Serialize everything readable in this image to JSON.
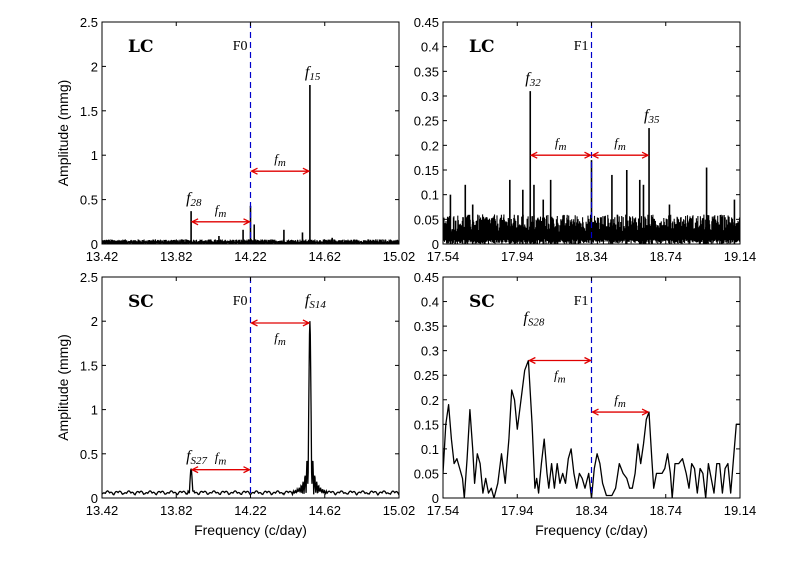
{
  "figure": {
    "xlabel": "Frequency (c/day)",
    "ylabel": "Amplitude (mmg)",
    "colors": {
      "signal": "#000000",
      "reference_line": "#0000cc",
      "spacing_arrow": "#e00000"
    }
  },
  "chart_data": [
    {
      "id": "lc-f0",
      "type": "line",
      "panel_label": "LC",
      "xlabel": "",
      "ylabel": "Amplitude (mmg)",
      "xlim": [
        13.42,
        15.02
      ],
      "ylim": [
        0,
        2.5
      ],
      "xticks": [
        "13.42",
        "13.82",
        "14.22",
        "14.62",
        "15.02"
      ],
      "yticks": [
        "0",
        "0.5",
        "1",
        "1.5",
        "2",
        "2.5"
      ],
      "reference": {
        "label": "F0",
        "x": 14.22
      },
      "noise_level": 0.035,
      "peaks": [
        {
          "x": 13.9,
          "y": 0.37,
          "label": "f",
          "sub": "28"
        },
        {
          "x": 14.05,
          "y": 0.09
        },
        {
          "x": 14.18,
          "y": 0.16
        },
        {
          "x": 14.22,
          "y": 0.43
        },
        {
          "x": 14.24,
          "y": 0.22
        },
        {
          "x": 14.4,
          "y": 0.16
        },
        {
          "x": 14.5,
          "y": 0.13
        },
        {
          "x": 14.54,
          "y": 1.79,
          "label": "f",
          "sub": "15"
        },
        {
          "x": 14.66,
          "y": 0.07
        }
      ],
      "arrows": [
        {
          "x1": 14.22,
          "x2": 14.54,
          "y": 0.82,
          "label": "f",
          "sub": "m"
        },
        {
          "x1": 13.9,
          "x2": 14.22,
          "y": 0.25,
          "label": "f",
          "sub": "m"
        }
      ]
    },
    {
      "id": "lc-f1",
      "type": "line",
      "panel_label": "LC",
      "xlabel": "",
      "ylabel": "",
      "xlim": [
        17.54,
        19.14
      ],
      "ylim": [
        0,
        0.45
      ],
      "xticks": [
        "17.54",
        "17.94",
        "18.34",
        "18.74",
        "19.14"
      ],
      "yticks": [
        "0",
        "0.05",
        "0.1",
        "0.15",
        "0.2",
        "0.25",
        "0.3",
        "0.35",
        "0.4",
        "0.45"
      ],
      "reference": {
        "label": "F1",
        "x": 18.34
      },
      "noise_level": 0.04,
      "peaks": [
        {
          "x": 17.58,
          "y": 0.1
        },
        {
          "x": 17.66,
          "y": 0.12
        },
        {
          "x": 17.7,
          "y": 0.08
        },
        {
          "x": 17.9,
          "y": 0.13
        },
        {
          "x": 17.97,
          "y": 0.11
        },
        {
          "x": 18.01,
          "y": 0.31,
          "label": "f",
          "sub": "32"
        },
        {
          "x": 18.03,
          "y": 0.12
        },
        {
          "x": 18.08,
          "y": 0.09
        },
        {
          "x": 18.12,
          "y": 0.13
        },
        {
          "x": 18.34,
          "y": 0.17
        },
        {
          "x": 18.45,
          "y": 0.14
        },
        {
          "x": 18.53,
          "y": 0.15
        },
        {
          "x": 18.6,
          "y": 0.13
        },
        {
          "x": 18.62,
          "y": 0.12
        },
        {
          "x": 18.65,
          "y": 0.235,
          "label": "f",
          "sub": "35"
        },
        {
          "x": 18.76,
          "y": 0.08
        },
        {
          "x": 18.96,
          "y": 0.155
        },
        {
          "x": 19.11,
          "y": 0.09
        }
      ],
      "arrows": [
        {
          "x1": 18.01,
          "x2": 18.34,
          "y": 0.18,
          "label": "f",
          "sub": "m"
        },
        {
          "x1": 18.34,
          "x2": 18.65,
          "y": 0.18,
          "label": "f",
          "sub": "m"
        }
      ]
    },
    {
      "id": "sc-f0",
      "type": "line",
      "panel_label": "SC",
      "xlabel": "Frequency (c/day)",
      "ylabel": "Amplitude (mmg)",
      "xlim": [
        13.42,
        15.02
      ],
      "ylim": [
        0,
        2.5
      ],
      "xticks": [
        "13.42",
        "13.82",
        "14.22",
        "14.62",
        "15.02"
      ],
      "yticks": [
        "0",
        "0.5",
        "1",
        "1.5",
        "2",
        "2.5"
      ],
      "reference": {
        "label": "F0",
        "x": 14.22
      },
      "peaks": [
        {
          "x": 13.9,
          "y": 0.33,
          "label": "f",
          "sub": "S27"
        },
        {
          "x": 14.54,
          "y": 2.0,
          "label": "f",
          "sub": "S14"
        }
      ],
      "arrows": [
        {
          "x1": 14.22,
          "x2": 14.54,
          "y": 1.98,
          "label": "f",
          "sub": "m"
        },
        {
          "x1": 13.9,
          "x2": 14.22,
          "y": 0.32,
          "label": "f",
          "sub": "m"
        }
      ]
    },
    {
      "id": "sc-f1",
      "type": "line",
      "panel_label": "SC",
      "xlabel": "Frequency (c/day)",
      "ylabel": "",
      "xlim": [
        17.54,
        19.14
      ],
      "ylim": [
        0,
        0.45
      ],
      "xticks": [
        "17.54",
        "17.94",
        "18.34",
        "18.74",
        "19.14"
      ],
      "yticks": [
        "0",
        "0.05",
        "0.1",
        "0.15",
        "0.2",
        "0.25",
        "0.3",
        "0.35",
        "0.4",
        "0.45"
      ],
      "reference": {
        "label": "F1",
        "x": 18.34
      },
      "peaks": [
        {
          "x": 18.0,
          "y": 0.28,
          "label": "f",
          "sub": "S28"
        },
        {
          "x": 18.65,
          "y": 0.175
        }
      ],
      "arrows": [
        {
          "x1": 18.0,
          "x2": 18.34,
          "y": 0.28,
          "label": "f",
          "sub": "m"
        },
        {
          "x1": 18.34,
          "x2": 18.65,
          "y": 0.175,
          "label": "f",
          "sub": "m"
        }
      ],
      "curve": [
        [
          17.54,
          0.05
        ],
        [
          17.555,
          0.15
        ],
        [
          17.57,
          0.19
        ],
        [
          17.585,
          0.12
        ],
        [
          17.6,
          0.07
        ],
        [
          17.615,
          0.08
        ],
        [
          17.63,
          0.06
        ],
        [
          17.645,
          0.04
        ],
        [
          17.655,
          0.0
        ],
        [
          17.67,
          0.08
        ],
        [
          17.685,
          0.18
        ],
        [
          17.7,
          0.1
        ],
        [
          17.71,
          0.03
        ],
        [
          17.725,
          0.09
        ],
        [
          17.74,
          0.07
        ],
        [
          17.755,
          0.01
        ],
        [
          17.77,
          0.04
        ],
        [
          17.785,
          0.01
        ],
        [
          17.8,
          0.02
        ],
        [
          17.815,
          0.0
        ],
        [
          17.835,
          0.03
        ],
        [
          17.855,
          0.09
        ],
        [
          17.875,
          0.03
        ],
        [
          17.895,
          0.12
        ],
        [
          17.91,
          0.22
        ],
        [
          17.925,
          0.2
        ],
        [
          17.94,
          0.14
        ],
        [
          17.96,
          0.2
        ],
        [
          17.98,
          0.26
        ],
        [
          18.0,
          0.28
        ],
        [
          18.02,
          0.15
        ],
        [
          18.035,
          0.02
        ],
        [
          18.045,
          0.04
        ],
        [
          18.055,
          0.01
        ],
        [
          18.07,
          0.07
        ],
        [
          18.085,
          0.12
        ],
        [
          18.1,
          0.05
        ],
        [
          18.11,
          0.02
        ],
        [
          18.125,
          0.07
        ],
        [
          18.14,
          0.02
        ],
        [
          18.155,
          0.07
        ],
        [
          18.17,
          0.03
        ],
        [
          18.185,
          0.05
        ],
        [
          18.2,
          0.03
        ],
        [
          18.215,
          0.08
        ],
        [
          18.23,
          0.1
        ],
        [
          18.245,
          0.05
        ],
        [
          18.26,
          0.02
        ],
        [
          18.275,
          0.05
        ],
        [
          18.29,
          0.04
        ],
        [
          18.305,
          0.02
        ],
        [
          18.325,
          0.05
        ],
        [
          18.34,
          0.0
        ],
        [
          18.355,
          0.06
        ],
        [
          18.37,
          0.09
        ],
        [
          18.385,
          0.07
        ],
        [
          18.4,
          0.03
        ],
        [
          18.42,
          0.005
        ],
        [
          18.45,
          0.005
        ],
        [
          18.47,
          0.02
        ],
        [
          18.49,
          0.07
        ],
        [
          18.51,
          0.05
        ],
        [
          18.53,
          0.04
        ],
        [
          18.545,
          0.02
        ],
        [
          18.56,
          0.02
        ],
        [
          18.575,
          0.05
        ],
        [
          18.59,
          0.11
        ],
        [
          18.605,
          0.07
        ],
        [
          18.62,
          0.11
        ],
        [
          18.635,
          0.16
        ],
        [
          18.65,
          0.175
        ],
        [
          18.665,
          0.08
        ],
        [
          18.675,
          0.02
        ],
        [
          18.69,
          0.05
        ],
        [
          18.705,
          0.05
        ],
        [
          18.72,
          0.05
        ],
        [
          18.735,
          0.06
        ],
        [
          18.75,
          0.09
        ],
        [
          18.765,
          0.05
        ],
        [
          18.775,
          0.0
        ],
        [
          18.79,
          0.07
        ],
        [
          18.81,
          0.07
        ],
        [
          18.83,
          0.08
        ],
        [
          18.85,
          0.05
        ],
        [
          18.865,
          0.02
        ],
        [
          18.88,
          0.07
        ],
        [
          18.895,
          0.06
        ],
        [
          18.91,
          0.01
        ],
        [
          18.925,
          0.06
        ],
        [
          18.94,
          0.05
        ],
        [
          18.955,
          0.0
        ],
        [
          18.97,
          0.07
        ],
        [
          18.985,
          0.04
        ],
        [
          19.0,
          0.01
        ],
        [
          19.015,
          0.07
        ],
        [
          19.03,
          0.07
        ],
        [
          19.045,
          0.01
        ],
        [
          19.06,
          0.06
        ],
        [
          19.075,
          0.07
        ],
        [
          19.09,
          0.01
        ],
        [
          19.105,
          0.08
        ],
        [
          19.12,
          0.15
        ],
        [
          19.14,
          0.15
        ]
      ]
    }
  ]
}
